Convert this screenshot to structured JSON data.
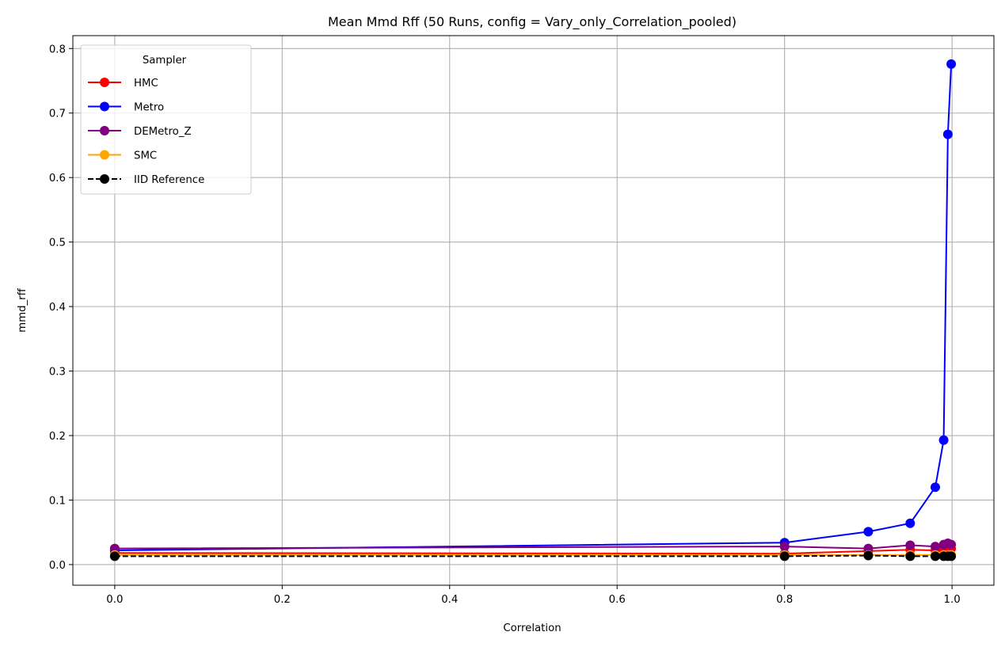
{
  "chart_data": {
    "type": "line",
    "title": "Mean Mmd Rff (50 Runs, config = Vary_only_Correlation_pooled)",
    "xlabel": "Correlation",
    "ylabel": "mmd_rff",
    "xlim": [
      -0.05,
      1.05
    ],
    "ylim": [
      -0.032,
      0.82
    ],
    "xticks": [
      "0.0",
      "0.2",
      "0.4",
      "0.6",
      "0.8",
      "1.0"
    ],
    "yticks": [
      "0.0",
      "0.1",
      "0.2",
      "0.3",
      "0.4",
      "0.5",
      "0.6",
      "0.7",
      "0.8"
    ],
    "grid": true,
    "legend": {
      "title": "Sampler",
      "position": "top-left"
    },
    "x": [
      0.0,
      0.8,
      0.9,
      0.95,
      0.98,
      0.99,
      0.995,
      0.999
    ],
    "series": [
      {
        "name": "HMC",
        "color": "#ff0000",
        "style": "solid",
        "values": [
          0.018,
          0.017,
          0.021,
          0.023,
          0.022,
          0.024,
          0.025,
          0.025
        ]
      },
      {
        "name": "Metro",
        "color": "#0000ff",
        "style": "solid",
        "values": [
          0.022,
          0.034,
          0.051,
          0.064,
          0.12,
          0.193,
          0.667,
          0.776
        ]
      },
      {
        "name": "DEMetro_Z",
        "color": "#800080",
        "style": "solid",
        "values": [
          0.025,
          0.028,
          0.025,
          0.03,
          0.028,
          0.031,
          0.033,
          0.031
        ]
      },
      {
        "name": "SMC",
        "color": "#ffa500",
        "style": "solid",
        "values": [
          0.015,
          0.015,
          0.015,
          0.015,
          0.015,
          0.015,
          0.015,
          0.015
        ]
      },
      {
        "name": "IID Reference",
        "color": "#000000",
        "style": "dashed",
        "values": [
          0.013,
          0.013,
          0.014,
          0.013,
          0.013,
          0.013,
          0.013,
          0.013
        ]
      }
    ]
  }
}
